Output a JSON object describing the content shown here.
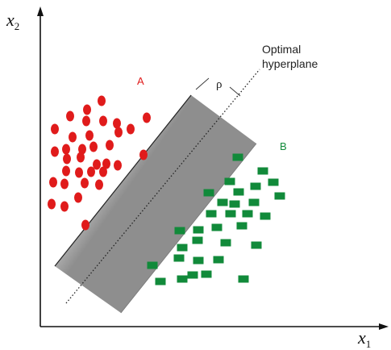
{
  "axes": {
    "x_label": "x",
    "x_sub": "1",
    "y_label": "x",
    "y_sub": "2"
  },
  "annotations": {
    "optimal_line1": "Optimal",
    "optimal_line2": "hyperplane",
    "margin_symbol": "ρ"
  },
  "classes": {
    "a_label": "A",
    "b_label": "B",
    "a_color": "#e01b1b",
    "b_color": "#118a3a"
  },
  "colors": {
    "band_light": "#f2f2f2",
    "band_dark": "#9a9a9a",
    "axis": "#111111"
  }
}
